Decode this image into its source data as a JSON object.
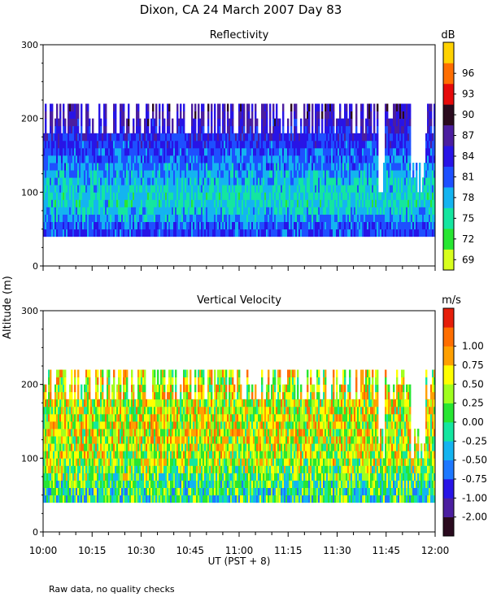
{
  "figure": {
    "title": "Dixon, CA 24 March 2007  Day  83",
    "ylabel": "Altitude (m)",
    "xlabel": "UT  (PST + 8)",
    "footnote": "Raw data, no quality checks"
  },
  "colors": {
    "reflectivity": [
      "#d8ff1e",
      "#28e632",
      "#14e6a0",
      "#14b4f0",
      "#1e50ff",
      "#2814e6",
      "#4b1ea0",
      "#2a0a1e",
      "#e60a0a",
      "#ff6e00",
      "#ffd200"
    ],
    "velocity": [
      "#2a0a1e",
      "#4b1ea0",
      "#2814e6",
      "#1e78ff",
      "#14b4f0",
      "#14e6a0",
      "#28e632",
      "#a0ff1e",
      "#ffff00",
      "#ffa000",
      "#ff6e00",
      "#e61e0a"
    ]
  },
  "chart_data": [
    {
      "type": "heatmap",
      "title": "Reflectivity",
      "ylabel": "Altitude (m)",
      "xlabel": "",
      "ylim": [
        0,
        300
      ],
      "yticks": [
        "0",
        "100",
        "200",
        "300"
      ],
      "xlim": [
        "10:00",
        "12:00"
      ],
      "colorbar": {
        "unit": "dB",
        "ticks": [
          "69",
          "72",
          "75",
          "78",
          "81",
          "84",
          "87",
          "90",
          "93",
          "96"
        ],
        "range": [
          67.5,
          100.5
        ]
      },
      "data_altitude_range": [
        40,
        220
      ],
      "profile": [
        {
          "altitude": 40,
          "value": 82
        },
        {
          "altitude": 50,
          "value": 82
        },
        {
          "altitude": 60,
          "value": 80
        },
        {
          "altitude": 75,
          "value": 77
        },
        {
          "altitude": 90,
          "value": 76
        },
        {
          "altitude": 110,
          "value": 77
        },
        {
          "altitude": 130,
          "value": 79
        },
        {
          "altitude": 150,
          "value": 81
        },
        {
          "altitude": 170,
          "value": 83
        },
        {
          "altitude": 180,
          "value": 84
        },
        {
          "altitude": 200,
          "value": 86
        },
        {
          "altitude": 220,
          "value": 86
        }
      ]
    },
    {
      "type": "heatmap",
      "title": "Vertical Velocity",
      "ylabel": "Altitude (m)",
      "xlabel": "UT  (PST + 8)",
      "ylim": [
        0,
        300
      ],
      "yticks": [
        "0",
        "100",
        "200",
        "300"
      ],
      "xlim": [
        "10:00",
        "12:00"
      ],
      "xticks": [
        "10:00",
        "10:15",
        "10:30",
        "10:45",
        "11:00",
        "11:15",
        "11:30",
        "11:45",
        "12:00"
      ],
      "colorbar": {
        "unit": "m/s",
        "ticks": [
          "-2.00",
          "-1.00",
          "-0.75",
          "-0.50",
          "-0.25",
          "0.00",
          "0.25",
          "0.50",
          "0.75",
          "1.00"
        ],
        "range": [
          -2.25,
          1.25
        ]
      },
      "data_altitude_range": [
        40,
        220
      ],
      "profile": [
        {
          "altitude": 40,
          "value": -0.6
        },
        {
          "altitude": 60,
          "value": -0.5
        },
        {
          "altitude": 80,
          "value": -0.2
        },
        {
          "altitude": 100,
          "value": 0.0
        },
        {
          "altitude": 130,
          "value": 0.1
        },
        {
          "altitude": 160,
          "value": 0.1
        },
        {
          "altitude": 200,
          "value": 0.1
        },
        {
          "altitude": 220,
          "value": 0.2
        }
      ]
    }
  ]
}
